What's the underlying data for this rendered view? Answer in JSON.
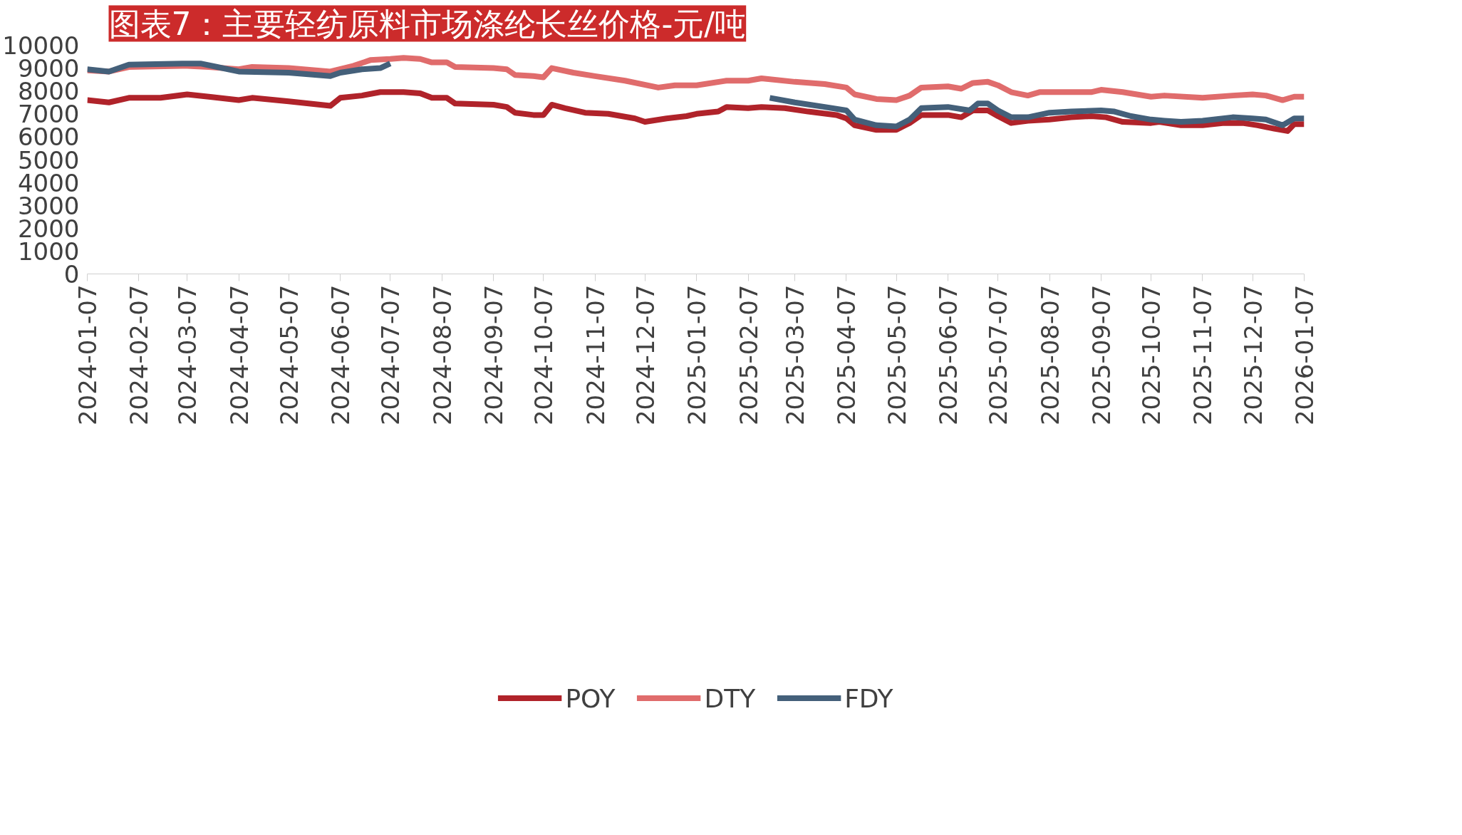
{
  "chart_data": {
    "type": "line",
    "title": "图表7：主要轻纺原料市场涤纶长丝价格-元/吨",
    "xlim": [
      "2024-01-07",
      "2026-01-07"
    ],
    "xticks": [
      "2024-01-07",
      "2024-02-07",
      "2024-03-07",
      "2024-04-07",
      "2024-05-07",
      "2024-06-07",
      "2024-07-07",
      "2024-08-07",
      "2024-09-07",
      "2024-10-07",
      "2024-11-07",
      "2024-12-07",
      "2025-01-07",
      "2025-02-07",
      "2025-03-07",
      "2025-04-07",
      "2025-05-07",
      "2025-06-07",
      "2025-07-07",
      "2025-08-07",
      "2025-09-07",
      "2025-10-07",
      "2025-11-07",
      "2025-12-07",
      "2026-01-07"
    ],
    "ylim": [
      0,
      10000
    ],
    "yticks": [
      0,
      1000,
      2000,
      3000,
      4000,
      5000,
      6000,
      7000,
      8000,
      9000,
      10000
    ],
    "grid": false,
    "legend": "bottom",
    "line_style": "solid",
    "series": [
      {
        "name": "POY",
        "color": "#b0232a",
        "x": [
          "2024-01-07",
          "2024-01-20",
          "2024-02-01",
          "2024-02-20",
          "2024-03-07",
          "2024-03-20",
          "2024-04-07",
          "2024-04-15",
          "2024-05-07",
          "2024-06-01",
          "2024-06-07",
          "2024-06-20",
          "2024-07-01",
          "2024-07-15",
          "2024-07-25",
          "2024-08-01",
          "2024-08-10",
          "2024-08-15",
          "2024-09-07",
          "2024-09-15",
          "2024-09-20",
          "2024-10-01",
          "2024-10-07",
          "2024-10-12",
          "2024-10-20",
          "2024-11-01",
          "2024-11-15",
          "2024-12-01",
          "2024-12-07",
          "2024-12-20",
          "2025-01-01",
          "2025-01-07",
          "2025-01-20",
          "2025-01-25",
          "2025-02-07",
          "2025-02-15",
          "2025-03-01",
          "2025-03-15",
          "2025-04-01",
          "2025-04-07",
          "2025-04-12",
          "2025-04-25",
          "2025-05-07",
          "2025-05-15",
          "2025-05-22",
          "2025-06-07",
          "2025-06-15",
          "2025-06-22",
          "2025-07-01",
          "2025-07-07",
          "2025-07-15",
          "2025-07-25",
          "2025-08-07",
          "2025-08-20",
          "2025-09-01",
          "2025-09-10",
          "2025-09-20",
          "2025-10-07",
          "2025-10-12",
          "2025-10-25",
          "2025-11-07",
          "2025-11-20",
          "2025-12-01",
          "2025-12-10",
          "2025-12-20",
          "2025-12-28",
          "2026-01-01",
          "2026-01-07"
        ],
        "values": [
          7600,
          7500,
          7700,
          7700,
          7850,
          7750,
          7600,
          7700,
          7550,
          7350,
          7700,
          7800,
          7950,
          7950,
          7900,
          7700,
          7700,
          7450,
          7400,
          7300,
          7050,
          6950,
          6950,
          7400,
          7250,
          7050,
          7000,
          6800,
          6650,
          6800,
          6900,
          7000,
          7100,
          7300,
          7250,
          7300,
          7250,
          7100,
          6950,
          6800,
          6500,
          6300,
          6300,
          6600,
          6950,
          6950,
          6850,
          7150,
          7150,
          6900,
          6600,
          6700,
          6750,
          6850,
          6900,
          6850,
          6650,
          6600,
          6650,
          6500,
          6500,
          6600,
          6600,
          6500,
          6350,
          6250,
          6550,
          6550
        ]
      },
      {
        "name": "DTY",
        "color": "#e06c6c",
        "x": [
          "2024-01-07",
          "2024-01-20",
          "2024-02-01",
          "2024-03-07",
          "2024-03-20",
          "2024-04-07",
          "2024-04-15",
          "2024-05-07",
          "2024-06-01",
          "2024-06-15",
          "2024-06-25",
          "2024-07-07",
          "2024-07-15",
          "2024-07-25",
          "2024-08-01",
          "2024-08-10",
          "2024-08-15",
          "2024-09-07",
          "2024-09-15",
          "2024-09-20",
          "2024-10-01",
          "2024-10-07",
          "2024-10-12",
          "2024-10-25",
          "2024-11-07",
          "2024-11-25",
          "2024-12-15",
          "2024-12-25",
          "2025-01-07",
          "2025-01-25",
          "2025-02-07",
          "2025-02-15",
          "2025-03-07",
          "2025-03-25",
          "2025-04-07",
          "2025-04-12",
          "2025-04-25",
          "2025-05-07",
          "2025-05-15",
          "2025-05-22",
          "2025-06-07",
          "2025-06-15",
          "2025-06-22",
          "2025-07-01",
          "2025-07-07",
          "2025-07-15",
          "2025-07-25",
          "2025-08-01",
          "2025-09-01",
          "2025-09-07",
          "2025-09-20",
          "2025-10-07",
          "2025-10-15",
          "2025-11-07",
          "2025-11-25",
          "2025-12-07",
          "2025-12-15",
          "2025-12-25",
          "2026-01-01",
          "2026-01-07"
        ],
        "values": [
          8900,
          8850,
          9050,
          9100,
          9050,
          8950,
          9050,
          9000,
          8850,
          9100,
          9350,
          9400,
          9450,
          9400,
          9250,
          9250,
          9050,
          9000,
          8950,
          8700,
          8650,
          8600,
          9000,
          8800,
          8650,
          8450,
          8150,
          8250,
          8250,
          8450,
          8450,
          8550,
          8400,
          8300,
          8150,
          7850,
          7650,
          7600,
          7800,
          8150,
          8200,
          8100,
          8350,
          8400,
          8250,
          7950,
          7800,
          7950,
          7950,
          8050,
          7950,
          7750,
          7800,
          7700,
          7800,
          7850,
          7800,
          7600,
          7750,
          7750
        ]
      },
      {
        "name": "FDY",
        "color": "#44607a",
        "x": [
          "2024-01-07",
          "2024-01-20",
          "2024-02-01",
          "2024-03-07",
          "2024-03-15",
          "2024-03-25",
          "2024-04-07",
          "2024-05-07",
          "2024-06-01",
          "2024-06-07",
          "2024-06-20",
          "2024-07-01",
          "2024-07-07",
          "2024-12-01",
          "2025-02-20",
          "2025-03-07",
          "2025-03-25",
          "2025-04-07",
          "2025-04-12",
          "2025-04-25",
          "2025-05-07",
          "2025-05-15",
          "2025-05-22",
          "2025-06-07",
          "2025-06-20",
          "2025-06-25",
          "2025-07-01",
          "2025-07-07",
          "2025-07-15",
          "2025-07-25",
          "2025-08-07",
          "2025-08-20",
          "2025-09-07",
          "2025-09-15",
          "2025-09-25",
          "2025-10-07",
          "2025-10-15",
          "2025-10-25",
          "2025-11-07",
          "2025-11-25",
          "2025-12-07",
          "2025-12-15",
          "2025-12-25",
          "2026-01-01",
          "2026-01-07"
        ],
        "values": [
          8950,
          8850,
          9150,
          9200,
          9200,
          9050,
          8850,
          8800,
          8650,
          8800,
          8950,
          9000,
          9200,
          null,
          7700,
          7500,
          7300,
          7150,
          6750,
          6500,
          6450,
          6750,
          7250,
          7300,
          7150,
          7450,
          7450,
          7150,
          6850,
          6850,
          7050,
          7100,
          7150,
          7100,
          6900,
          6750,
          6700,
          6650,
          6700,
          6850,
          6800,
          6750,
          6500,
          6800,
          6800
        ]
      }
    ]
  }
}
